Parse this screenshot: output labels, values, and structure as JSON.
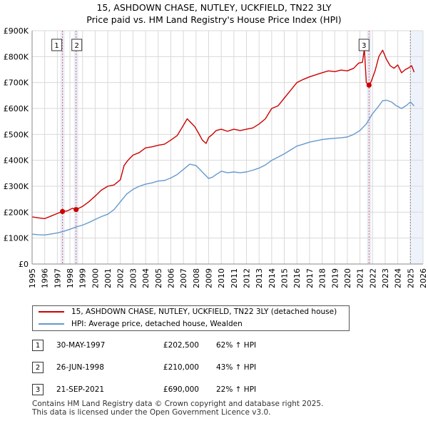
{
  "title_line1": "15, ASHDOWN CHASE, NUTLEY, UCKFIELD, TN22 3LY",
  "title_line2": "Price paid vs. HM Land Registry's House Price Index (HPI)",
  "colors": {
    "property": "#cc0000",
    "hpi": "#6699cc",
    "future_shade": "#eef2fa",
    "grid": "#d9d9d9"
  },
  "chart_data": {
    "type": "line",
    "title": "Price paid vs. HM Land Registry's House Price Index (HPI)",
    "xlabel": "",
    "ylabel": "",
    "xlim": [
      1995,
      2026
    ],
    "ylim": [
      0,
      900000
    ],
    "y_ticks": [
      0,
      100000,
      200000,
      300000,
      400000,
      500000,
      600000,
      700000,
      800000,
      900000
    ],
    "y_tick_labels": [
      "£0",
      "£100K",
      "£200K",
      "£300K",
      "£400K",
      "£500K",
      "£600K",
      "£700K",
      "£800K",
      "£900K"
    ],
    "x_ticks": [
      1995,
      1996,
      1997,
      1998,
      1999,
      2000,
      2001,
      2002,
      2003,
      2004,
      2005,
      2006,
      2007,
      2008,
      2009,
      2010,
      2011,
      2012,
      2013,
      2014,
      2015,
      2016,
      2017,
      2018,
      2019,
      2020,
      2021,
      2022,
      2023,
      2024,
      2025,
      2026
    ],
    "future_region_start": 2025.0,
    "series": [
      {
        "name": "15, ASHDOWN CHASE, NUTLEY, UCKFIELD, TN22 3LY (detached house)",
        "x": [
          1995.0,
          1995.5,
          1996.0,
          1996.5,
          1997.0,
          1997.41,
          1997.8,
          1998.2,
          1998.49,
          1999.0,
          1999.5,
          2000.0,
          2000.5,
          2001.0,
          2001.5,
          2002.0,
          2002.3,
          2002.6,
          2003.0,
          2003.5,
          2004.0,
          2004.5,
          2005.0,
          2005.5,
          2006.0,
          2006.5,
          2007.0,
          2007.3,
          2007.6,
          2007.9,
          2008.2,
          2008.5,
          2008.8,
          2009.0,
          2009.3,
          2009.6,
          2010.0,
          2010.5,
          2011.0,
          2011.5,
          2012.0,
          2012.5,
          2013.0,
          2013.5,
          2014.0,
          2014.5,
          2015.0,
          2015.5,
          2016.0,
          2016.5,
          2017.0,
          2017.5,
          2018.0,
          2018.5,
          2019.0,
          2019.5,
          2020.0,
          2020.5,
          2020.9,
          2021.2,
          2021.35,
          2021.5,
          2021.72,
          2021.9,
          2022.2,
          2022.5,
          2022.8,
          2023.1,
          2023.4,
          2023.7,
          2024.0,
          2024.3,
          2024.6,
          2024.9,
          2025.1,
          2025.3
        ],
        "values": [
          182000,
          178000,
          175000,
          185000,
          195000,
          202500,
          205000,
          215000,
          210000,
          222000,
          240000,
          262000,
          285000,
          300000,
          305000,
          325000,
          380000,
          400000,
          420000,
          430000,
          448000,
          452000,
          458000,
          462000,
          478000,
          495000,
          535000,
          560000,
          545000,
          530000,
          505000,
          478000,
          465000,
          488000,
          500000,
          515000,
          520000,
          512000,
          520000,
          515000,
          520000,
          525000,
          540000,
          560000,
          600000,
          610000,
          640000,
          670000,
          700000,
          712000,
          722000,
          730000,
          738000,
          745000,
          742000,
          748000,
          745000,
          755000,
          775000,
          778000,
          830000,
          700000,
          690000,
          705000,
          745000,
          800000,
          825000,
          790000,
          765000,
          755000,
          768000,
          738000,
          750000,
          758000,
          765000,
          740000
        ]
      },
      {
        "name": "HPI: Average price, detached house, Wealden",
        "x": [
          1995.0,
          1995.5,
          1996.0,
          1996.5,
          1997.0,
          1997.5,
          1998.0,
          1998.5,
          1999.0,
          1999.5,
          2000.0,
          2000.5,
          2001.0,
          2001.5,
          2002.0,
          2002.5,
          2003.0,
          2003.5,
          2004.0,
          2004.5,
          2005.0,
          2005.5,
          2006.0,
          2006.5,
          2007.0,
          2007.5,
          2008.0,
          2008.5,
          2009.0,
          2009.3,
          2009.6,
          2010.0,
          2010.5,
          2011.0,
          2011.5,
          2012.0,
          2012.5,
          2013.0,
          2013.5,
          2014.0,
          2014.5,
          2015.0,
          2015.5,
          2016.0,
          2016.5,
          2017.0,
          2017.5,
          2018.0,
          2018.5,
          2019.0,
          2019.5,
          2020.0,
          2020.5,
          2021.0,
          2021.5,
          2022.0,
          2022.5,
          2022.8,
          2023.1,
          2023.5,
          2023.9,
          2024.3,
          2024.7,
          2025.0,
          2025.3
        ],
        "values": [
          115000,
          113000,
          112000,
          116000,
          120000,
          126000,
          134000,
          143000,
          150000,
          160000,
          172000,
          183000,
          192000,
          210000,
          240000,
          270000,
          288000,
          300000,
          308000,
          313000,
          320000,
          322000,
          332000,
          345000,
          365000,
          385000,
          380000,
          355000,
          330000,
          335000,
          345000,
          358000,
          352000,
          355000,
          352000,
          355000,
          362000,
          370000,
          382000,
          400000,
          412000,
          425000,
          440000,
          455000,
          462000,
          470000,
          475000,
          480000,
          483000,
          485000,
          487000,
          490000,
          500000,
          515000,
          540000,
          580000,
          610000,
          630000,
          632000,
          625000,
          610000,
          600000,
          612000,
          625000,
          610000
        ]
      }
    ],
    "transactions": [
      {
        "id": "1",
        "x": 1997.41,
        "value": 202500
      },
      {
        "id": "2",
        "x": 1998.49,
        "value": 210000
      },
      {
        "id": "3",
        "x": 2021.72,
        "value": 690000
      }
    ]
  },
  "legend": {
    "property_label": "15, ASHDOWN CHASE, NUTLEY, UCKFIELD, TN22 3LY (detached house)",
    "hpi_label": "HPI: Average price, detached house, Wealden"
  },
  "transactions_table": [
    {
      "id": "1",
      "date": "30-MAY-1997",
      "price": "£202,500",
      "hpi": "62% ↑ HPI"
    },
    {
      "id": "2",
      "date": "26-JUN-1998",
      "price": "£210,000",
      "hpi": "43% ↑ HPI"
    },
    {
      "id": "3",
      "date": "21-SEP-2021",
      "price": "£690,000",
      "hpi": "22% ↑ HPI"
    }
  ],
  "footer_line1": "Contains HM Land Registry data © Crown copyright and database right 2025.",
  "footer_line2": "This data is licensed under the Open Government Licence v3.0."
}
